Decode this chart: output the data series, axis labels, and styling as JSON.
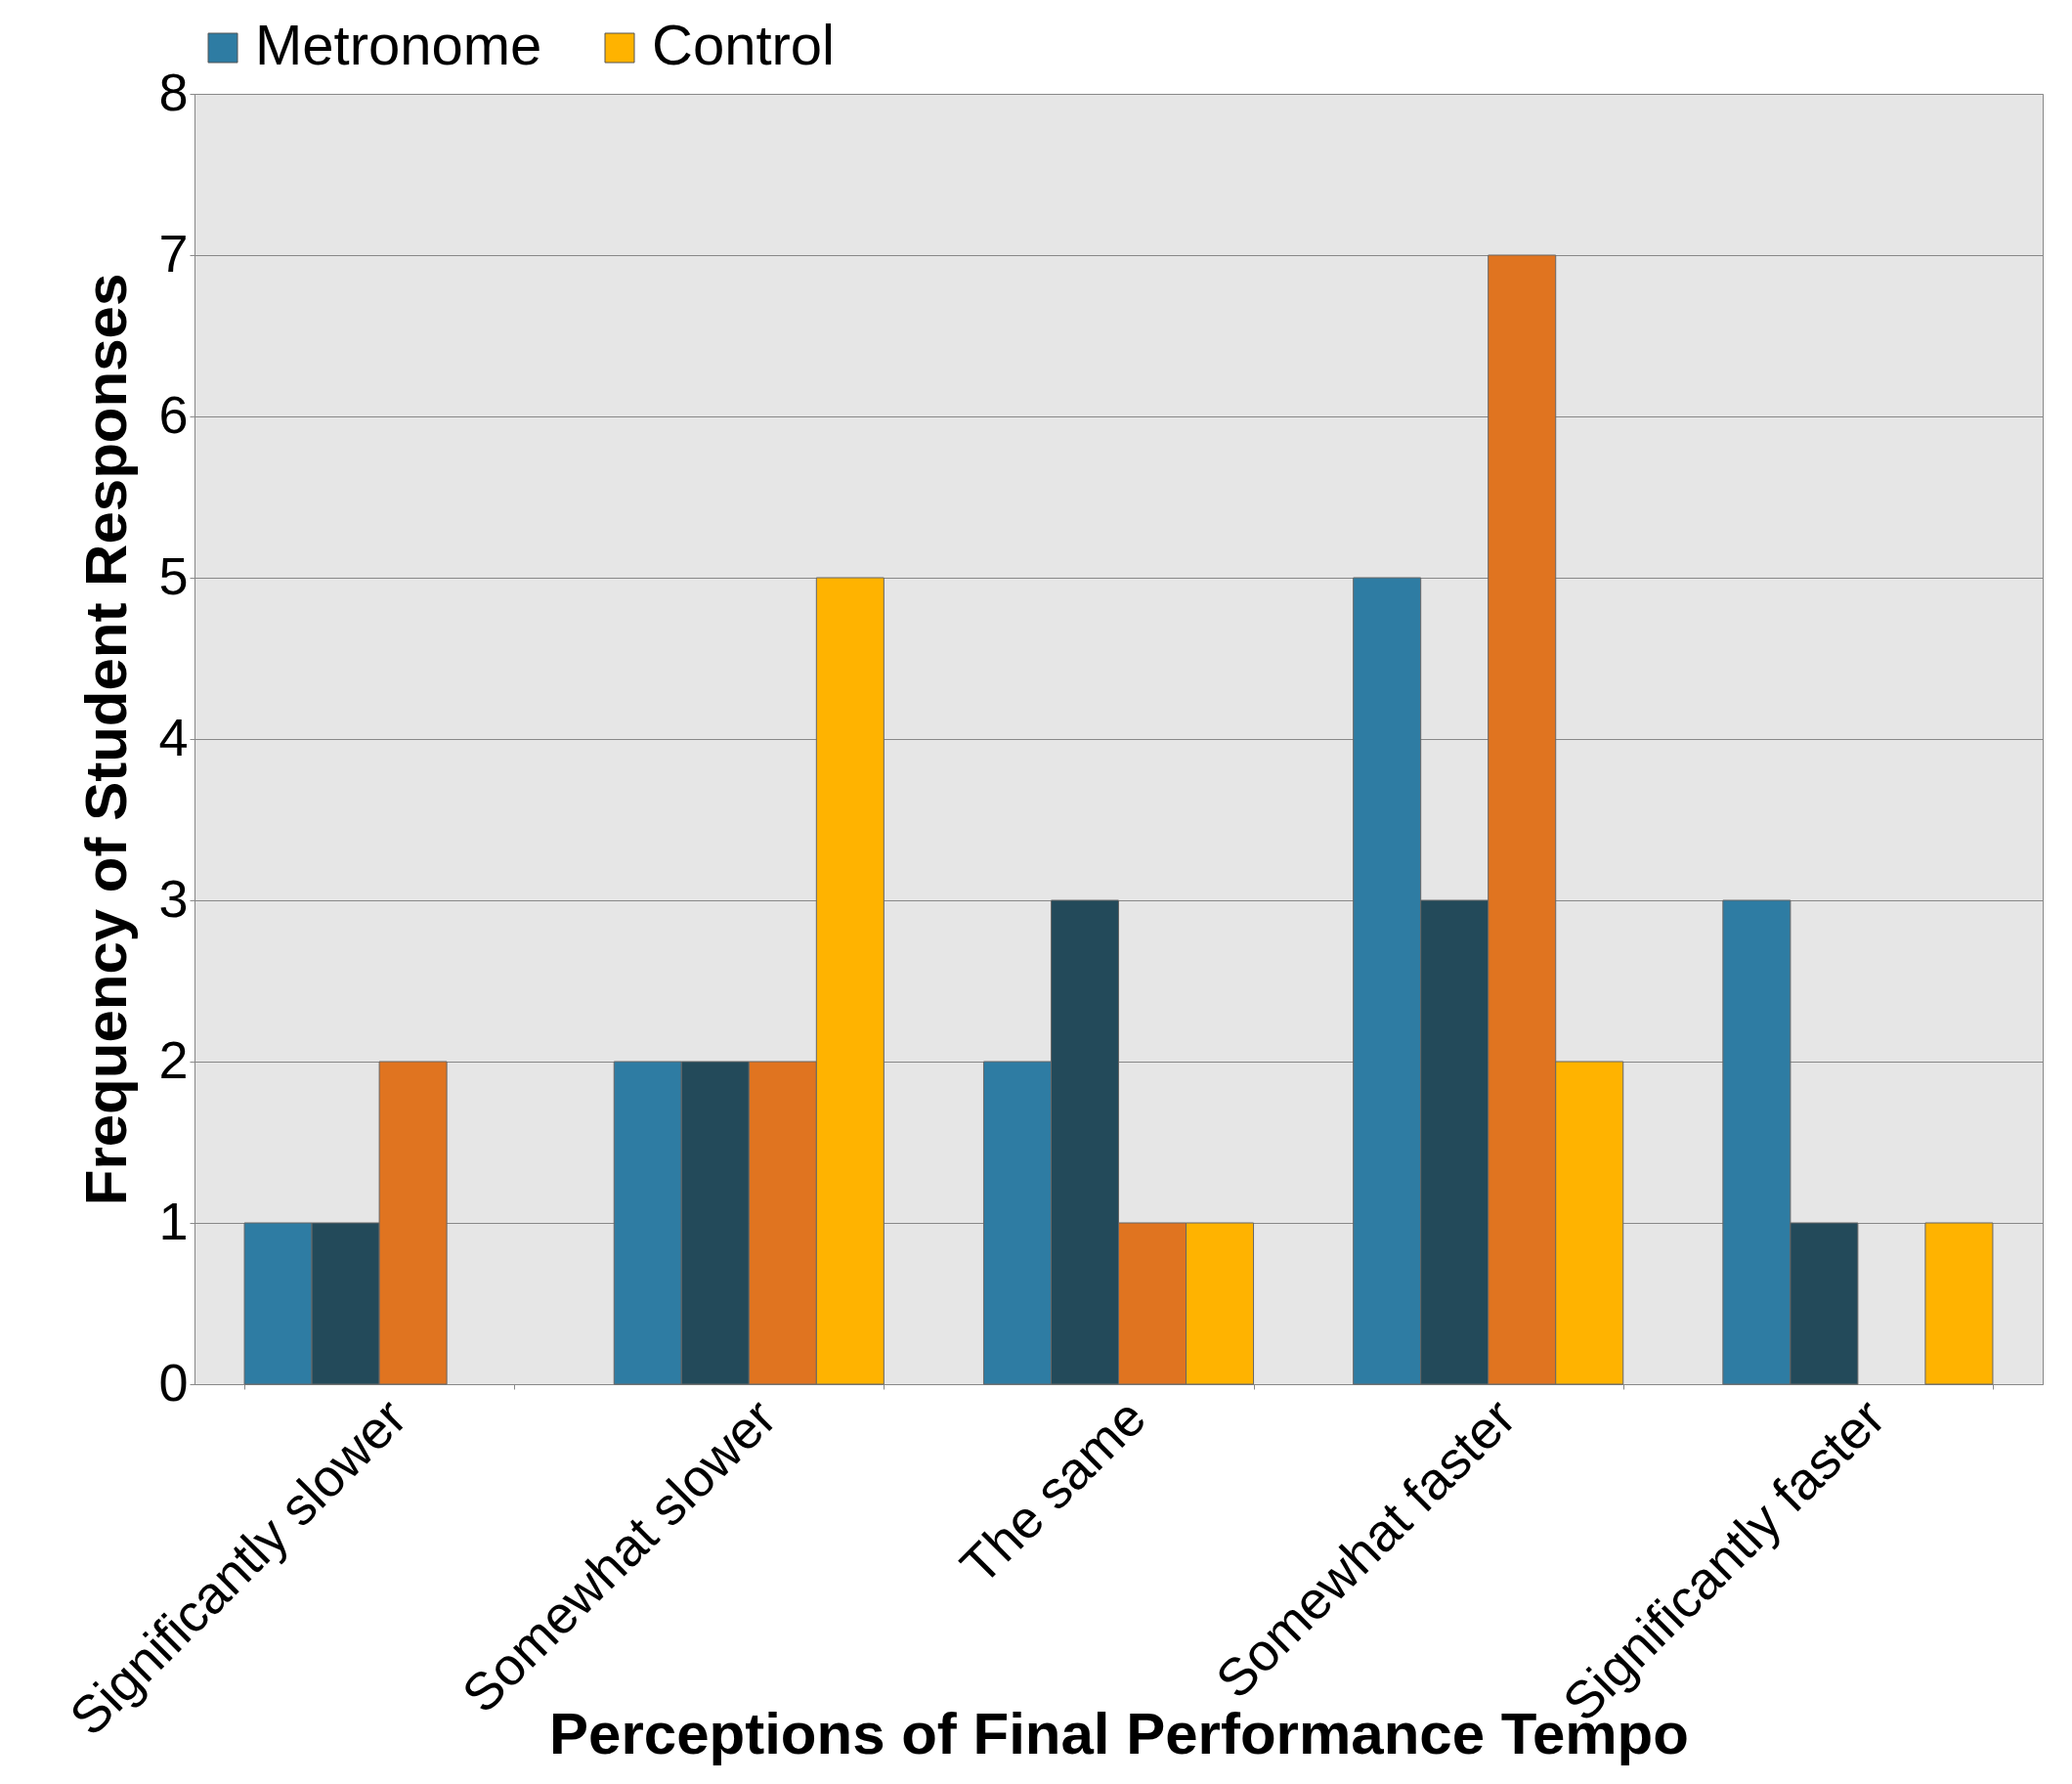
{
  "chart_data": {
    "type": "bar",
    "xlabel": "Perceptions of Final Performance Tempo",
    "ylabel": "Frequency of Student Responses",
    "categories": [
      "Significantly slower",
      "Somewhat slower",
      "The same",
      "Somewhat faster",
      "Significantly faster"
    ],
    "series": [
      {
        "name": "Metronome",
        "color": "#2e7ca3",
        "values": [
          1,
          2,
          2,
          5,
          3
        ]
      },
      {
        "color": "#234a5a",
        "values": [
          1,
          2,
          3,
          3,
          1
        ]
      },
      {
        "color": "#e07420",
        "values": [
          2,
          2,
          1,
          7,
          0
        ]
      },
      {
        "name": "Control",
        "color": "#ffb300",
        "values": [
          0,
          5,
          1,
          2,
          1
        ]
      }
    ],
    "ylim": [
      0,
      8
    ],
    "yticks": [
      0,
      1,
      2,
      3,
      4,
      5,
      6,
      7,
      8
    ],
    "grid": "y",
    "legend": "top"
  }
}
